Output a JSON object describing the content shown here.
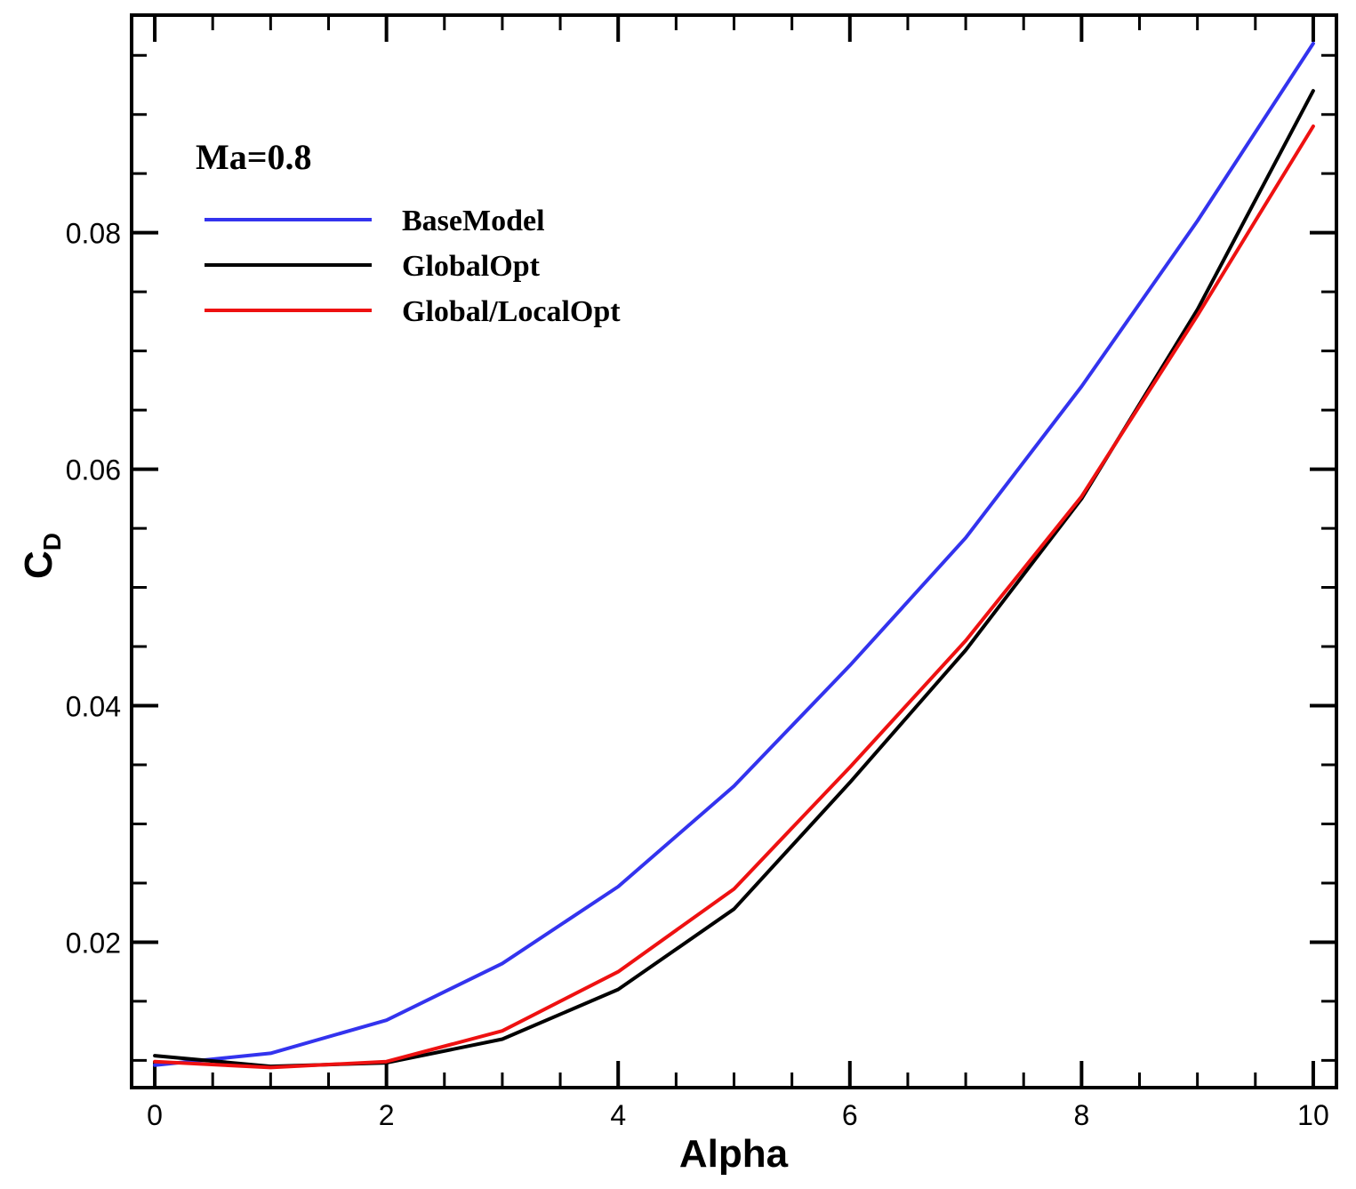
{
  "chart_data": {
    "type": "line",
    "title": "",
    "annotation": "Ma=0.8",
    "xlabel": "Alpha",
    "ylabel_main": "C",
    "ylabel_sub": "D",
    "xlim": [
      -0.2,
      10.2
    ],
    "ylim": [
      0.0077,
      0.0984
    ],
    "xticks": [
      0,
      2,
      4,
      6,
      8,
      10
    ],
    "xtick_labels": [
      "0",
      "2",
      "4",
      "6",
      "8",
      "10"
    ],
    "yticks": [
      0.02,
      0.04,
      0.06,
      0.08
    ],
    "ytick_labels": [
      "0.02",
      "0.04",
      "0.06",
      "0.08"
    ],
    "grid": false,
    "legend_position": "top-left",
    "series": [
      {
        "name": "BaseModel",
        "color": "#3333ee",
        "x": [
          0,
          1,
          2,
          3,
          4,
          5,
          6,
          7,
          8,
          9,
          10
        ],
        "y": [
          0.0096,
          0.0106,
          0.0134,
          0.0182,
          0.0247,
          0.0332,
          0.0434,
          0.0542,
          0.067,
          0.081,
          0.096
        ]
      },
      {
        "name": "GlobalOpt",
        "color": "#000000",
        "x": [
          0,
          1,
          2,
          3,
          4,
          5,
          6,
          7,
          8,
          9,
          10
        ],
        "y": [
          0.0104,
          0.0095,
          0.0098,
          0.0118,
          0.016,
          0.0228,
          0.0335,
          0.0447,
          0.0575,
          0.0735,
          0.092
        ]
      },
      {
        "name": "Global/LocalOpt",
        "color": "#ee1111",
        "x": [
          0,
          1,
          2,
          3,
          4,
          5,
          6,
          7,
          8,
          9,
          10
        ],
        "y": [
          0.0099,
          0.0094,
          0.0099,
          0.0125,
          0.0175,
          0.0245,
          0.0348,
          0.0455,
          0.0577,
          0.073,
          0.089
        ]
      }
    ]
  }
}
